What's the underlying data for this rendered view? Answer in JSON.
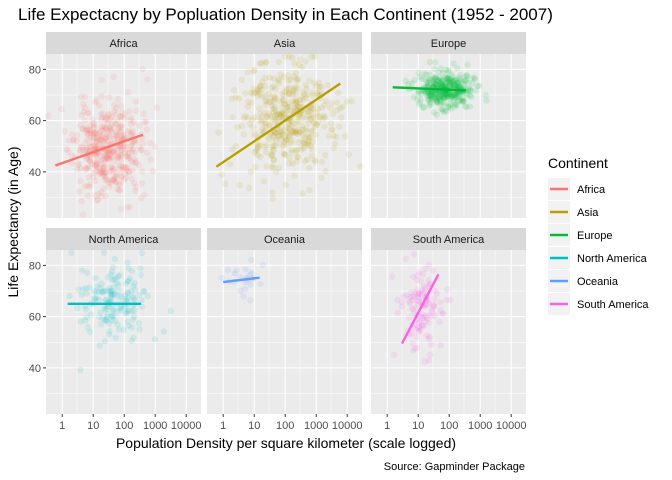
{
  "chart_data": {
    "type": "scatter",
    "title": "Life Expectacny by Popluation Density in Each Continent (1952 - 2007)",
    "xlabel": "Population Density per square kilometer (scale logged)",
    "ylabel": "Life Expectancy (in Age)",
    "caption": "Source: Gapminder Package",
    "x_scale": "log10",
    "xlim": [
      0.3,
      30000
    ],
    "ylim": [
      22,
      86
    ],
    "x_ticks": [
      1,
      10,
      100,
      1000,
      10000
    ],
    "x_tick_labels": [
      "1",
      "10",
      "100",
      "1000",
      "10000"
    ],
    "y_ticks": [
      40,
      60,
      80
    ],
    "y_tick_labels": [
      "40",
      "60",
      "80"
    ],
    "grid": true,
    "legend": {
      "title": "Continent",
      "position": "right",
      "items": [
        {
          "label": "Africa",
          "color": "#F8766D"
        },
        {
          "label": "Asia",
          "color": "#B79F00"
        },
        {
          "label": "Europe",
          "color": "#00BA38"
        },
        {
          "label": "North America",
          "color": "#00BFC4"
        },
        {
          "label": "Oceania",
          "color": "#619CFF"
        },
        {
          "label": "South America",
          "color": "#F564E3"
        }
      ]
    },
    "panels": [
      {
        "name": "Africa",
        "color": "#F8766D",
        "cloud": {
          "x_log_mean": 1.45,
          "x_log_sd": 0.55,
          "y_mean": 49,
          "y_sd": 9,
          "n": 420,
          "seed": 11
        },
        "trend": {
          "x": [
            0.6,
            400
          ],
          "y": [
            42.5,
            54.5
          ]
        }
      },
      {
        "name": "Asia",
        "color": "#B79F00",
        "cloud": {
          "x_log_mean": 2.0,
          "x_log_sd": 0.75,
          "y_mean": 60,
          "y_sd": 11,
          "n": 420,
          "seed": 23
        },
        "trend": {
          "x": [
            0.6,
            6000
          ],
          "y": [
            42,
            74.5
          ]
        }
      },
      {
        "name": "Europe",
        "color": "#00BA38",
        "cloud": {
          "x_log_mean": 1.9,
          "x_log_sd": 0.45,
          "y_mean": 72,
          "y_sd": 3.5,
          "n": 360,
          "seed": 37
        },
        "trend": {
          "x": [
            1.5,
            350
          ],
          "y": [
            73,
            71.8
          ]
        }
      },
      {
        "name": "North America",
        "color": "#00BFC4",
        "cloud": {
          "x_log_mean": 1.7,
          "x_log_sd": 0.55,
          "y_mean": 66,
          "y_sd": 8,
          "n": 160,
          "seed": 41
        },
        "trend": {
          "x": [
            1.5,
            350
          ],
          "y": [
            65,
            65
          ]
        }
      },
      {
        "name": "Oceania",
        "color": "#619CFF",
        "cloud": {
          "x_log_mean": 0.6,
          "x_log_sd": 0.3,
          "y_mean": 74,
          "y_sd": 3.5,
          "n": 24,
          "seed": 53
        },
        "trend": {
          "x": [
            1,
            15
          ],
          "y": [
            73.5,
            75.2
          ]
        }
      },
      {
        "name": "South America",
        "color": "#F564E3",
        "cloud": {
          "x_log_mean": 1.1,
          "x_log_sd": 0.35,
          "y_mean": 64,
          "y_sd": 8,
          "n": 130,
          "seed": 67
        },
        "trend": {
          "x": [
            3,
            45
          ],
          "y": [
            49.5,
            76.5
          ]
        }
      }
    ]
  }
}
